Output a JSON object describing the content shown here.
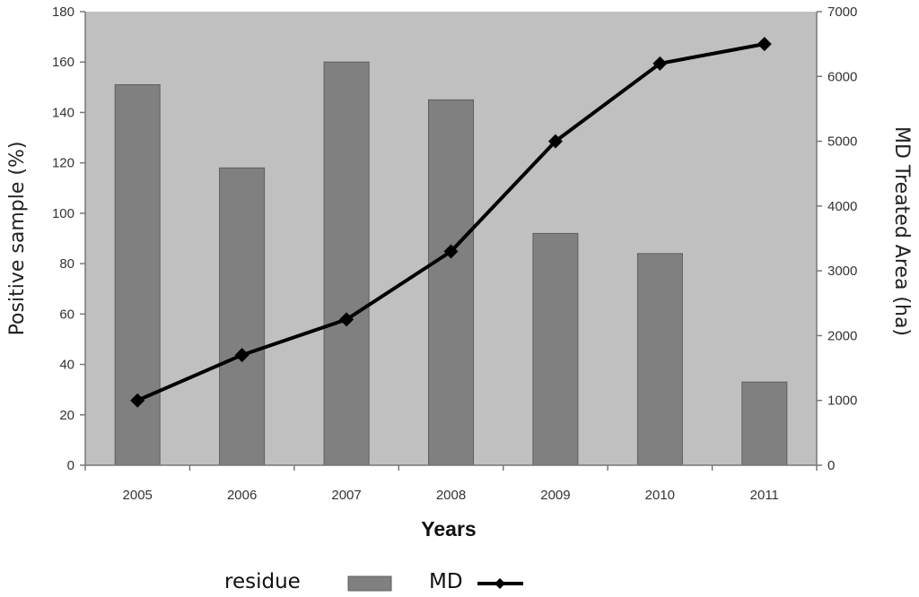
{
  "chart_data": {
    "type": "bar+line",
    "categories": [
      "2005",
      "2006",
      "2007",
      "2008",
      "2009",
      "2010",
      "2011"
    ],
    "series": [
      {
        "name": "residue",
        "type": "bar",
        "axis": "left",
        "values": [
          151,
          118,
          160,
          145,
          92,
          84,
          33
        ]
      },
      {
        "name": "MD",
        "type": "line",
        "axis": "right",
        "marker": "diamond",
        "values": [
          1000,
          1700,
          2250,
          3300,
          5000,
          6200,
          6500
        ]
      }
    ],
    "xlabel": "Years",
    "ylabel": "Positive sample (%)",
    "y2label": "MD Treated Area (ha)",
    "ylim": [
      0,
      180
    ],
    "y2lim": [
      0,
      7000
    ],
    "yticks": [
      "0",
      "20",
      "40",
      "60",
      "80",
      "100",
      "120",
      "140",
      "160",
      "180"
    ],
    "y2ticks": [
      "0",
      "1000",
      "2000",
      "3000",
      "4000",
      "5000",
      "6000",
      "7000"
    ],
    "grid": false,
    "legend": "bottom",
    "colors": {
      "plot_background": "#c0c0c0",
      "bar": "#808080",
      "bar_edge": "#5e5e5e",
      "line": "#000000"
    }
  }
}
